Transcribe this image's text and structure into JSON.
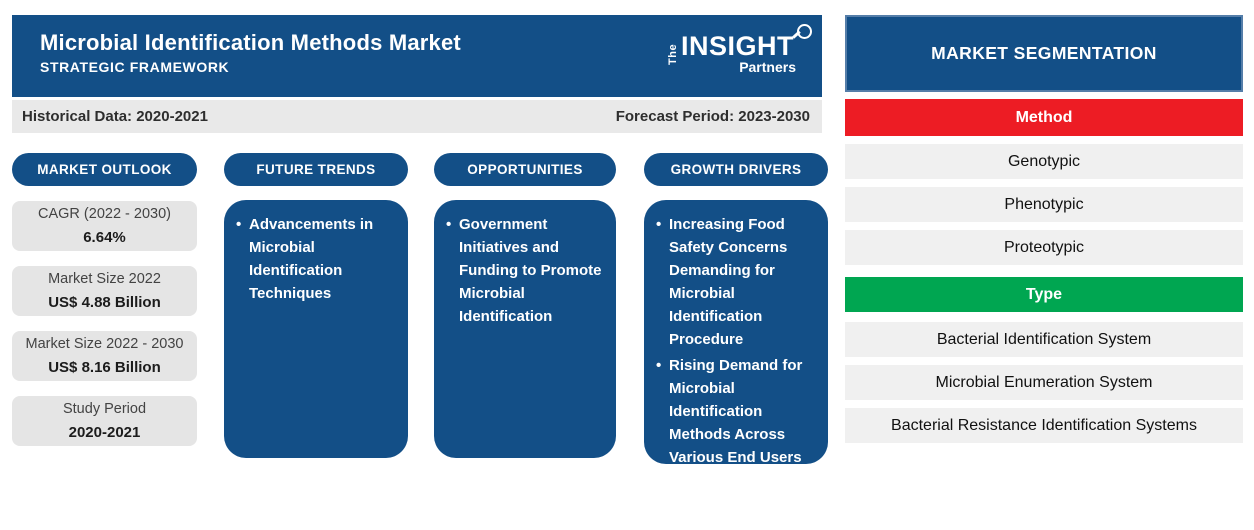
{
  "header": {
    "title": "Microbial Identification Methods Market",
    "subtitle": "STRATEGIC FRAMEWORK",
    "logo": {
      "the": "The",
      "insight": "INSIGHT",
      "partners": "Partners"
    }
  },
  "period_bar": {
    "historical": "Historical Data: 2020-2021",
    "forecast": "Forecast Period: 2023-2030"
  },
  "columns": {
    "outlook": {
      "title": "MARKET OUTLOOK",
      "cards": [
        {
          "label": "CAGR (2022 - 2030)",
          "value": "6.64%"
        },
        {
          "label": "Market Size 2022",
          "value": "US$ 4.88 Billion"
        },
        {
          "label": "Market Size 2022 - 2030",
          "value": "US$ 8.16 Billion"
        },
        {
          "label": "Study Period",
          "value": "2020-2021"
        }
      ]
    },
    "future_trends": {
      "title": "FUTURE TRENDS",
      "bullets": [
        "Advancements in Microbial Identification Techniques"
      ]
    },
    "opportunities": {
      "title": "OPPORTUNITIES",
      "bullets": [
        "Government Initiatives and Funding to Promote Microbial Identification"
      ]
    },
    "growth_drivers": {
      "title": "GROWTH DRIVERS",
      "bullets": [
        "Increasing Food Safety Concerns Demanding for Microbial Identification Procedure",
        "Rising Demand for Microbial Identification Methods Across Various End Users"
      ]
    }
  },
  "segmentation": {
    "title": "MARKET SEGMENTATION",
    "groups": [
      {
        "header": "Method",
        "color": "#ED1C24",
        "items": [
          "Genotypic",
          "Phenotypic",
          "Proteotypic"
        ]
      },
      {
        "header": "Type",
        "color": "#00A651",
        "items": [
          "Bacterial Identification System",
          "Microbial Enumeration System",
          "Bacterial Resistance Identification Systems"
        ]
      }
    ]
  },
  "colors": {
    "brand_blue": "#134F87",
    "method_red": "#ED1C24",
    "type_green": "#00A651",
    "bar_gray": "#E9E9E9",
    "card_gray": "#E5E5E5",
    "row_gray": "#F0F0F0"
  }
}
